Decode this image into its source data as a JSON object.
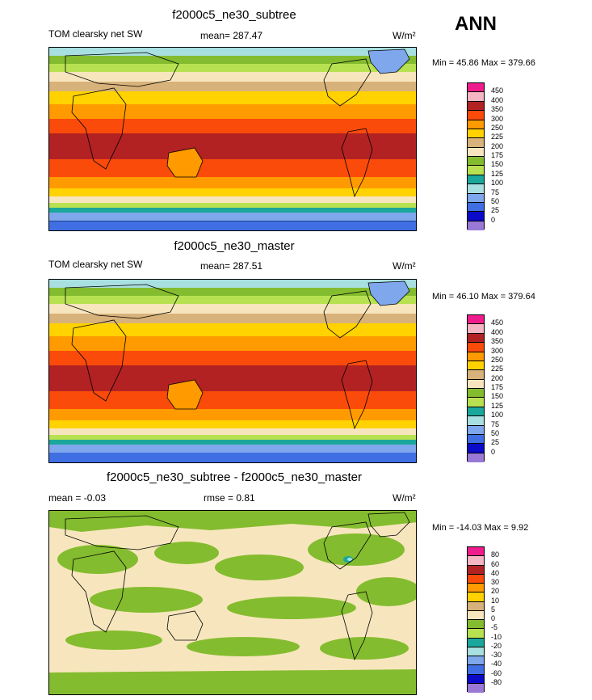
{
  "corner_label": "ANN",
  "panels": [
    {
      "title": "f2000c5_ne30_subtree",
      "left_text": "TOM clearsky net SW",
      "center_text": "mean= 287.47",
      "units": "W/m²",
      "minmax": "Min =  45.86 Max = 379.66",
      "levels": [
        "450",
        "400",
        "350",
        "300",
        "250",
        "225",
        "200",
        "175",
        "150",
        "125",
        "100",
        "75",
        "50",
        "25",
        "0"
      ],
      "colors": [
        "#ef1c8c",
        "#f4b6c2",
        "#b22222",
        "#fa4b0a",
        "#ff9a00",
        "#ffd200",
        "#d7b27a",
        "#f7e6bd",
        "#84bc2f",
        "#b8e152",
        "#1ba79b",
        "#a8dfe0",
        "#7ea7ec",
        "#3f6fe3",
        "#0a0ac8",
        "#9a78d6"
      ]
    },
    {
      "title": "f2000c5_ne30_master",
      "left_text": "TOM clearsky net SW",
      "center_text": "mean= 287.51",
      "units": "W/m²",
      "minmax": "Min =  46.10 Max = 379.64",
      "levels": [
        "450",
        "400",
        "350",
        "300",
        "250",
        "225",
        "200",
        "175",
        "150",
        "125",
        "100",
        "75",
        "50",
        "25",
        "0"
      ],
      "colors": [
        "#ef1c8c",
        "#f4b6c2",
        "#b22222",
        "#fa4b0a",
        "#ff9a00",
        "#ffd200",
        "#d7b27a",
        "#f7e6bd",
        "#84bc2f",
        "#b8e152",
        "#1ba79b",
        "#a8dfe0",
        "#7ea7ec",
        "#3f6fe3",
        "#0a0ac8",
        "#9a78d6"
      ]
    },
    {
      "title": "f2000c5_ne30_subtree - f2000c5_ne30_master",
      "left_text": "mean =  -0.03",
      "center_text": "rmse =   0.81",
      "units": "W/m²",
      "minmax": "Min = -14.03 Max =   9.92",
      "levels": [
        "80",
        "60",
        "40",
        "30",
        "20",
        "10",
        "5",
        "0",
        "-5",
        "-10",
        "-20",
        "-30",
        "-40",
        "-60",
        "-80"
      ],
      "colors": [
        "#ef1c8c",
        "#f4b6c2",
        "#b22222",
        "#fa4b0a",
        "#ff9a00",
        "#ffd200",
        "#d7b27a",
        "#f7e6bd",
        "#84bc2f",
        "#b8e152",
        "#1ba79b",
        "#a8dfe0",
        "#7ea7ec",
        "#3f6fe3",
        "#0a0ac8",
        "#9a78d6"
      ]
    }
  ]
}
